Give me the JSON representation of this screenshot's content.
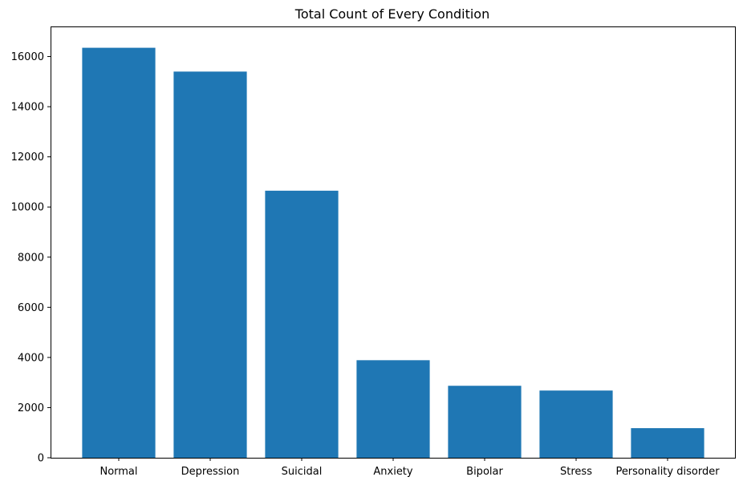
{
  "chart_data": {
    "type": "bar",
    "title": "Total Count of Every Condition",
    "xlabel": "",
    "ylabel": "",
    "categories": [
      "Normal",
      "Depression",
      "Suicidal",
      "Anxiety",
      "Bipolar",
      "Stress",
      "Personality disorder"
    ],
    "values": [
      16350,
      15400,
      10650,
      3890,
      2870,
      2680,
      1180
    ],
    "ylim": [
      0,
      17200
    ],
    "yticks": [
      0,
      2000,
      4000,
      6000,
      8000,
      10000,
      12000,
      14000,
      16000
    ],
    "grid": false,
    "legend": "none",
    "bar_color": "#1f77b4"
  }
}
